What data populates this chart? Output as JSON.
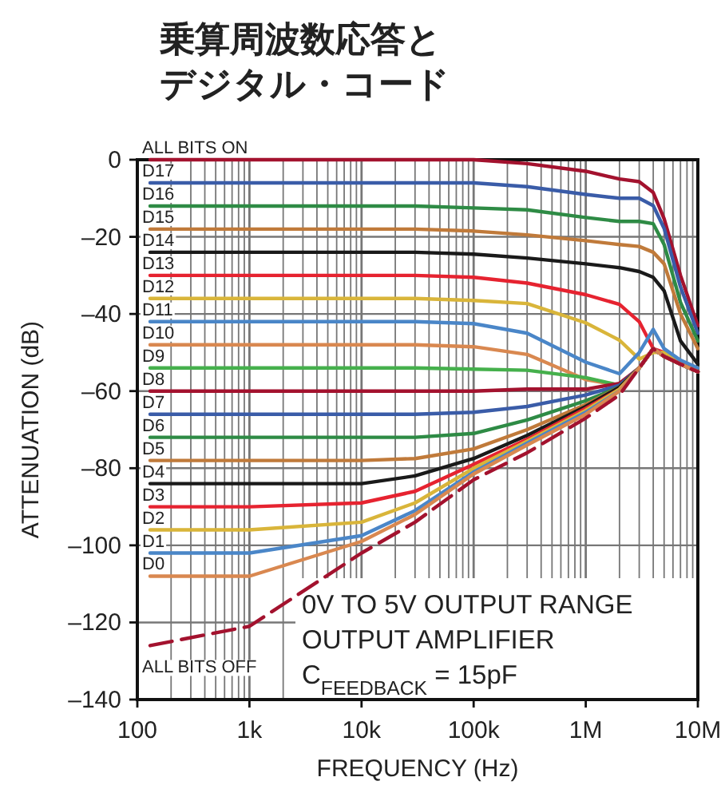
{
  "chart_data": {
    "type": "line",
    "title": "乗算周波数応答とデジタル・コード",
    "xlabel": "FREQUENCY (Hz)",
    "ylabel": "ATTENUATION (dB)",
    "log": "x",
    "grid": true,
    "legend": false,
    "marker": "none",
    "xlim": [
      100,
      10000000
    ],
    "ylim": [
      -140,
      0
    ],
    "xticks": [
      {
        "value": 100,
        "label": "100"
      },
      {
        "value": 1000,
        "label": "1k"
      },
      {
        "value": 10000,
        "label": "10k"
      },
      {
        "value": 100000,
        "label": "100k"
      },
      {
        "value": 1000000,
        "label": "1M"
      },
      {
        "value": 10000000,
        "label": "10M"
      }
    ],
    "yticks": [
      {
        "value": 0,
        "label": "0"
      },
      {
        "value": -20,
        "label": "–20"
      },
      {
        "value": -40,
        "label": "–40"
      },
      {
        "value": -60,
        "label": "–60"
      },
      {
        "value": -80,
        "label": "–80"
      },
      {
        "value": -100,
        "label": "–100"
      },
      {
        "value": -120,
        "label": "–120"
      },
      {
        "value": -140,
        "label": "–140"
      }
    ],
    "x": [
      130,
      1000,
      10000,
      30000,
      100000,
      300000,
      1000000,
      2000000,
      3000000,
      4000000,
      5000000,
      7000000,
      10000000
    ],
    "series": [
      {
        "name": "ALL BITS ON",
        "color": "#a3122e",
        "values": [
          0,
          0,
          0,
          0,
          0,
          -1,
          -3,
          -5,
          -5.7,
          -8.5,
          -15.3,
          -30,
          -43
        ]
      },
      {
        "name": "D17",
        "color": "#3a5ca8",
        "values": [
          -6,
          -6,
          -6,
          -6,
          -6,
          -7,
          -9,
          -10,
          -10,
          -11.9,
          -17.8,
          -33,
          -45
        ]
      },
      {
        "name": "D16",
        "color": "#2e8b45",
        "values": [
          -12,
          -12,
          -12,
          -12,
          -12.5,
          -13,
          -15,
          -16,
          -16,
          -16.6,
          -22,
          -37,
          -47
        ]
      },
      {
        "name": "D15",
        "color": "#c07a3a",
        "values": [
          -18,
          -18,
          -18,
          -18,
          -18.5,
          -19.5,
          -21,
          -22,
          -22.5,
          -24,
          -27,
          -40,
          -49
        ]
      },
      {
        "name": "D14",
        "color": "#1a1a1a",
        "values": [
          -24,
          -24,
          -24,
          -24,
          -24.5,
          -25.5,
          -27,
          -28,
          -29,
          -30.5,
          -34,
          -47,
          -53
        ]
      },
      {
        "name": "D13",
        "color": "#e62330",
        "values": [
          -30,
          -30,
          -30,
          -30,
          -30.5,
          -32,
          -35,
          -37.5,
          -42,
          -49,
          -50,
          -53,
          -55
        ]
      },
      {
        "name": "D12",
        "color": "#d9b53a",
        "values": [
          -36,
          -36,
          -36,
          -36,
          -36.5,
          -37.3,
          -42.3,
          -46.8,
          -51.7,
          -50,
          -50,
          -53,
          -54
        ]
      },
      {
        "name": "D11",
        "color": "#4a86c8",
        "values": [
          -42,
          -42,
          -42,
          -42,
          -42.5,
          -45,
          -52.5,
          -55.5,
          -50,
          -44,
          -49,
          -52,
          -54
        ]
      },
      {
        "name": "D10",
        "color": "#d98850",
        "values": [
          -48,
          -48,
          -48,
          -48,
          -48.5,
          -50.5,
          -57,
          -58.5,
          -54,
          -49,
          -51,
          -53,
          -55
        ]
      },
      {
        "name": "D9",
        "color": "#45b04c",
        "values": [
          -54,
          -54,
          -54,
          -54,
          -54.3,
          -54.6,
          -56.5,
          -58.5,
          -54,
          null,
          null,
          null,
          null
        ]
      },
      {
        "name": "D8",
        "color": "#a3122e",
        "values": [
          -60,
          -60,
          -60,
          -60,
          -60,
          -59.5,
          -59.5,
          -58,
          -54,
          -49,
          -51,
          -53,
          -55
        ]
      },
      {
        "name": "D7",
        "color": "#3a5ca8",
        "values": [
          -66,
          -66,
          -66,
          -66,
          -65.5,
          -64,
          -61,
          -58.5,
          -54,
          -49,
          -51,
          -53,
          -55
        ]
      },
      {
        "name": "D6",
        "color": "#2e8b45",
        "values": [
          -72,
          -72,
          -72,
          -72,
          -71,
          -67.5,
          -62.5,
          -59,
          -54,
          null,
          null,
          null,
          null
        ]
      },
      {
        "name": "D5",
        "color": "#c07a3a",
        "values": [
          -78,
          -78,
          -78,
          -77.5,
          -75,
          -70,
          -63.5,
          -59,
          -54,
          -49,
          -51,
          -53,
          -55
        ]
      },
      {
        "name": "D4",
        "color": "#1a1a1a",
        "values": [
          -84,
          -84,
          -84,
          -82,
          -77.5,
          -71.5,
          -64,
          -59,
          -54,
          -49,
          -51,
          -53,
          -55
        ]
      },
      {
        "name": "D3",
        "color": "#e62330",
        "values": [
          -90,
          -90,
          -89,
          -86,
          -79,
          -72.5,
          -64.5,
          -59.5,
          -54,
          -49,
          -51,
          -53,
          -55
        ]
      },
      {
        "name": "D2",
        "color": "#d9b53a",
        "values": [
          -96,
          -96,
          -94,
          -89,
          -80,
          -73,
          -65,
          -59.5,
          -54,
          -49,
          -51,
          -53,
          -55
        ]
      },
      {
        "name": "D1",
        "color": "#4a86c8",
        "values": [
          -102,
          -102,
          -97.5,
          -91,
          -81,
          -73.5,
          -65.5,
          -60,
          -54,
          -49,
          -51,
          -53,
          -55
        ]
      },
      {
        "name": "D0",
        "color": "#d98850",
        "values": [
          -108,
          -108,
          -99,
          -92,
          -81.5,
          -74,
          -66,
          -60,
          -54,
          -49,
          -51,
          -53,
          -55
        ]
      },
      {
        "name": "ALL BITS OFF",
        "color": "#a3122e",
        "line_style": "dashed",
        "values": [
          -126,
          -121,
          -102,
          -94,
          -83,
          -76,
          -67,
          -61,
          -54,
          -49,
          -51,
          -53,
          -55
        ]
      }
    ],
    "annotations": [
      "0V TO 5V OUTPUT RANGE",
      "OUTPUT AMPLIFIER",
      "C$_{FEEDBACK}$ = 15pF"
    ]
  }
}
